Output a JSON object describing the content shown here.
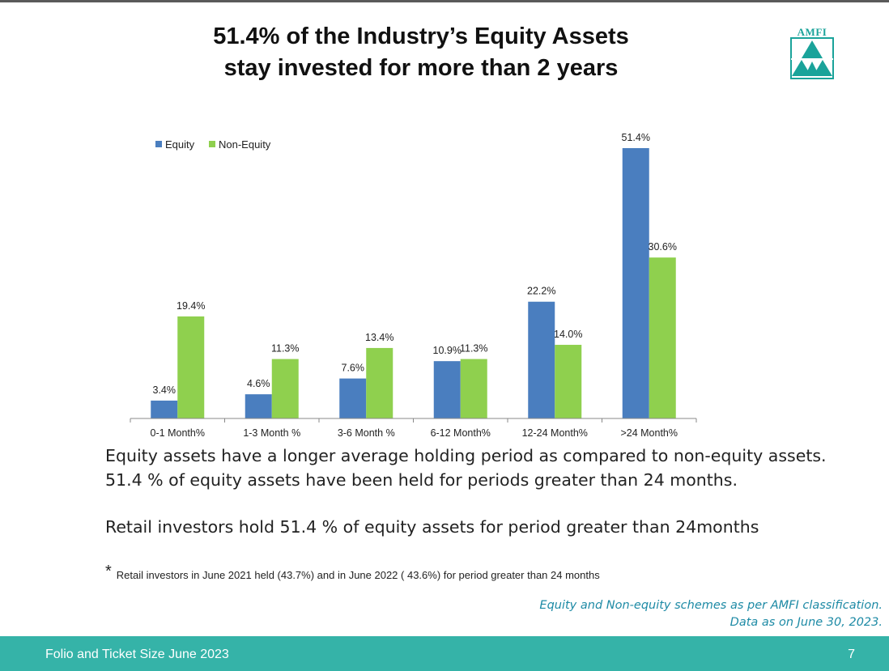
{
  "slide": {
    "title_line1": "51.4% of the Industry’s Equity Assets",
    "title_line2": "stay invested for more than 2 years",
    "logo_text": "AMFI"
  },
  "body": {
    "line1": "Equity assets have a longer average holding period as compared to non-equity assets.",
    "line2": "51.4 % of equity assets have been held for periods greater than 24 months.",
    "para2": "Retail investors hold 51.4 % of equity  assets  for period greater than 24months",
    "footnote_star": "*",
    "footnote": "Retail investors in June 2021 held (43.7%)  and in  June 2022 ( 43.6%) for period greater than 24 months"
  },
  "source": {
    "line1": "Equity and Non-equity schemes as per AMFI classification.",
    "line2": "Data as on June 30, 2023."
  },
  "footer": {
    "left": "Folio and Ticket Size June 2023",
    "page": "7"
  },
  "colors": {
    "equity": "#4a7ebf",
    "non_equity": "#8fd04e",
    "footer": "#35b3a8",
    "source_text": "#1d8aa5"
  },
  "chart_data": {
    "type": "bar",
    "categories": [
      "0-1 Month%",
      "1-3 Month %",
      "3-6 Month %",
      "6-12 Month%",
      "12-24 Month%",
      ">24 Month%"
    ],
    "series": [
      {
        "name": "Equity",
        "values": [
          3.4,
          4.6,
          7.6,
          10.9,
          22.2,
          51.4
        ],
        "labels": [
          "3.4%",
          "4.6%",
          "7.6%",
          "10.9%",
          "22.2%",
          "51.4%"
        ]
      },
      {
        "name": "Non-Equity",
        "values": [
          19.4,
          11.3,
          13.4,
          11.3,
          14.0,
          30.6
        ],
        "labels": [
          "19.4%",
          "11.3%",
          "13.4%",
          "11.3%",
          "14.0%",
          "30.6%"
        ]
      }
    ],
    "ylim": [
      0,
      51.4
    ],
    "legend": "top-left",
    "grid": false
  }
}
